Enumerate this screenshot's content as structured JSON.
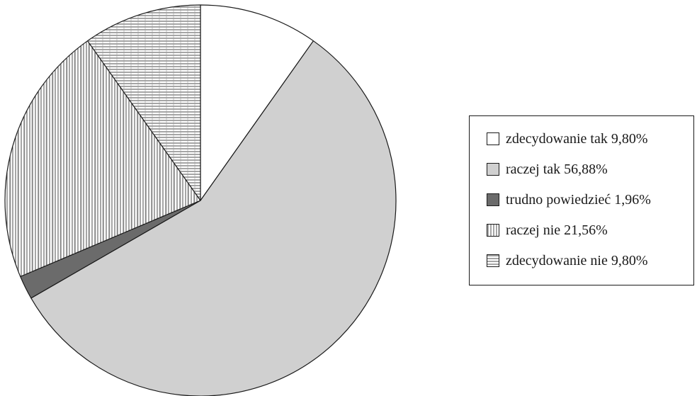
{
  "chart_data": {
    "type": "pie",
    "start_angle_deg": 0,
    "direction": "clockwise",
    "legend_position": "right",
    "slices": [
      {
        "label": "zdecydowanie tak 9,80%",
        "value": 9.8,
        "fill": "#ffffff",
        "pattern": "none"
      },
      {
        "label": "raczej tak 56,88%",
        "value": 56.88,
        "fill": "#d0d0d0",
        "pattern": "none"
      },
      {
        "label": "trudno powiedzieć 1,96%",
        "value": 1.96,
        "fill": "#6b6b6b",
        "pattern": "none"
      },
      {
        "label": "raczej nie  21,56%",
        "value": 21.56,
        "fill": "#ffffff",
        "pattern": "vertical-lines"
      },
      {
        "label": "zdecydowanie nie 9,80%",
        "value": 9.8,
        "fill": "#ffffff",
        "pattern": "horizontal-lines"
      }
    ]
  },
  "colors": {
    "outline": "#1a1a1a",
    "hatch": "#3a3a3a",
    "background": "#ffffff"
  }
}
